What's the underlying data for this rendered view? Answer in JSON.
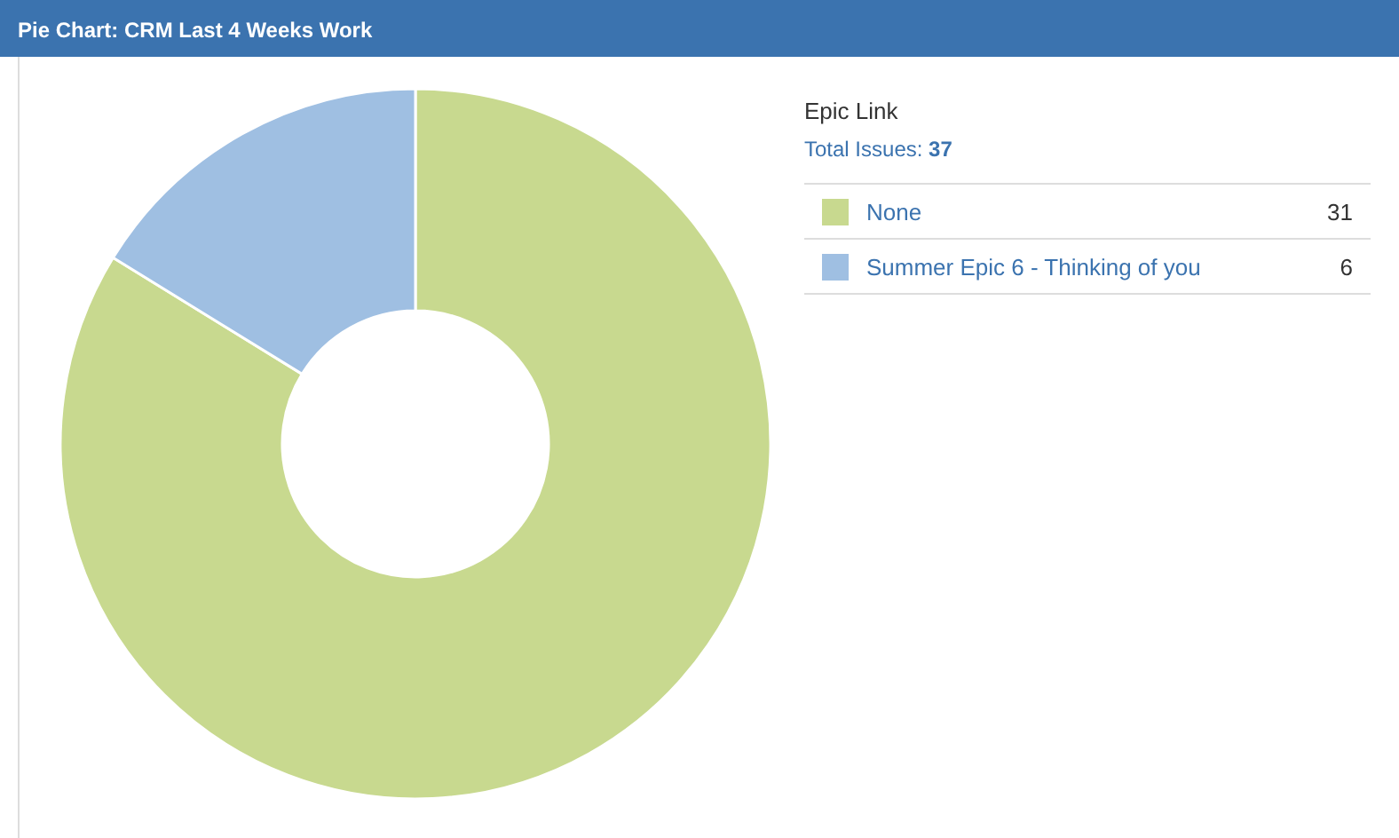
{
  "chart_data": {
    "type": "donut",
    "title": "Pie Chart: CRM Last 4 Weeks Work",
    "legend_title": "Epic Link",
    "subtitle": "Total Issues: 37",
    "categories": [
      "None",
      "Summer Epic 6 - Thinking of you"
    ],
    "values": [
      31,
      6
    ],
    "colors": [
      "#c8d98f",
      "#9fbfe2"
    ],
    "legend": "right",
    "data_labels": true
  }
}
